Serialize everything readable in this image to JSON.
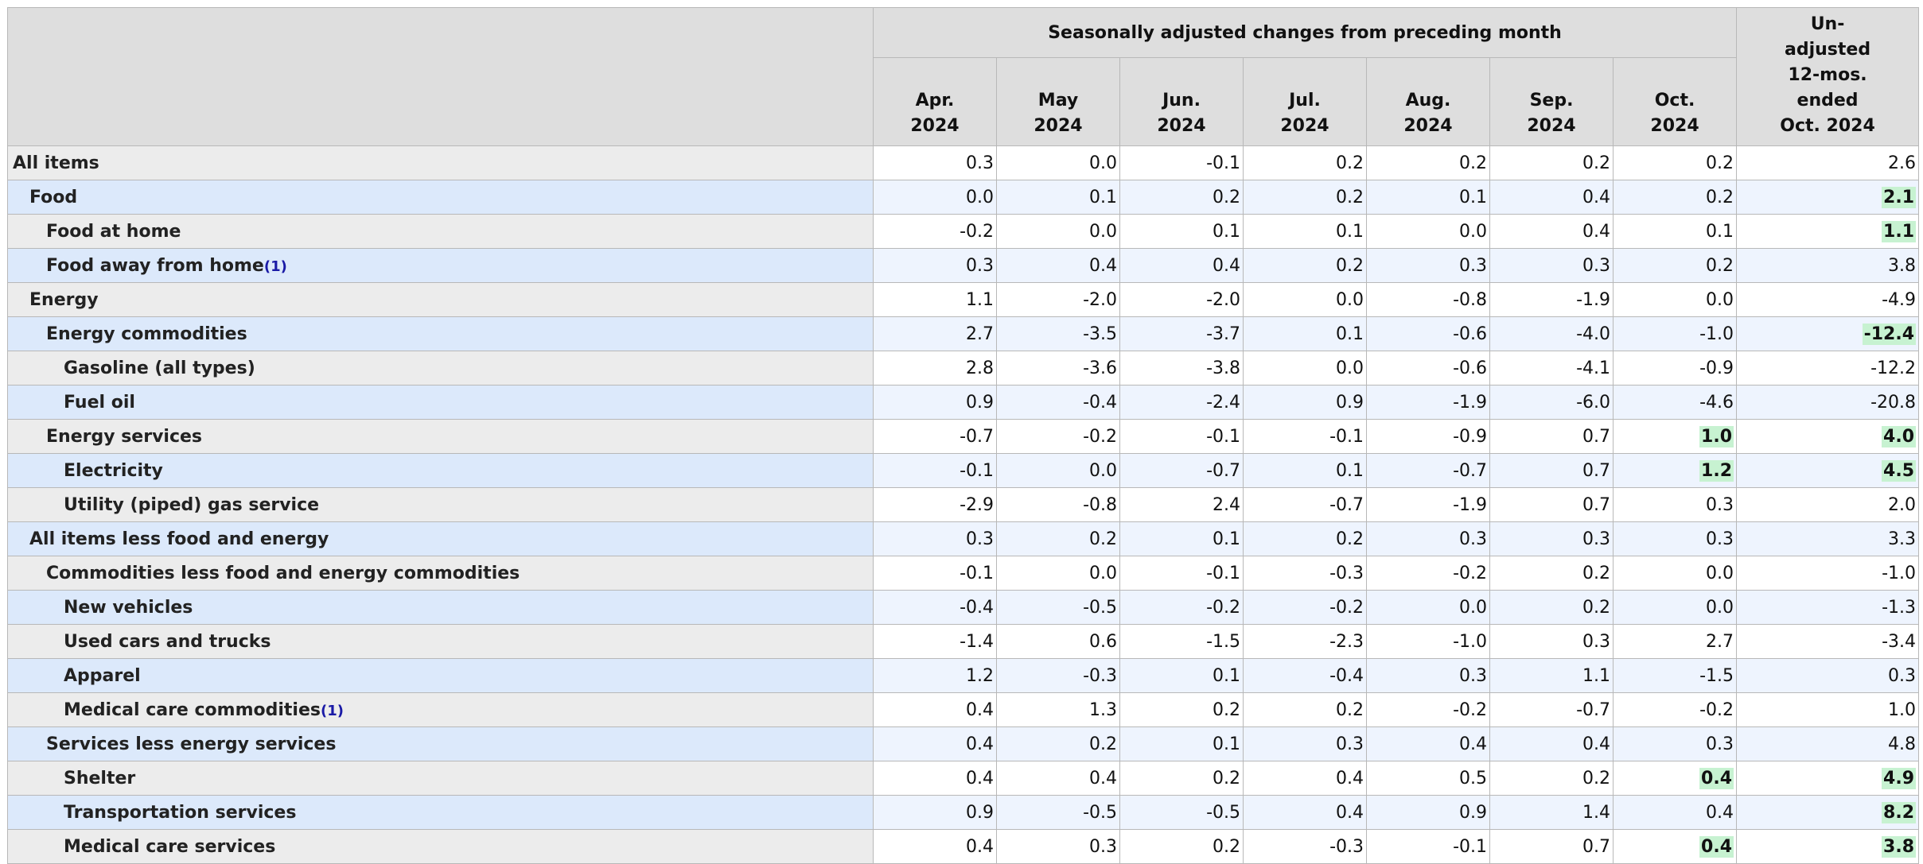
{
  "header": {
    "group_label": "Seasonally adjusted changes from preceding month",
    "months": [
      {
        "line1": "Apr.",
        "line2": "2024"
      },
      {
        "line1": "May",
        "line2": "2024"
      },
      {
        "line1": "Jun.",
        "line2": "2024"
      },
      {
        "line1": "Jul.",
        "line2": "2024"
      },
      {
        "line1": "Aug.",
        "line2": "2024"
      },
      {
        "line1": "Sep.",
        "line2": "2024"
      },
      {
        "line1": "Oct.",
        "line2": "2024"
      }
    ],
    "unadjusted_lines": [
      "Un-",
      "adjusted",
      "12-mos.",
      "ended",
      "Oct. 2024"
    ]
  },
  "rows": [
    {
      "label": "All items",
      "level": 0,
      "values": [
        "0.3",
        "0.0",
        "-0.1",
        "0.2",
        "0.2",
        "0.2",
        "0.2"
      ],
      "annual": "2.6",
      "highlight": []
    },
    {
      "label": "Food",
      "level": 1,
      "values": [
        "0.0",
        "0.1",
        "0.2",
        "0.2",
        "0.1",
        "0.4",
        "0.2"
      ],
      "annual": "2.1",
      "highlight": [
        7
      ]
    },
    {
      "label": "Food at home",
      "level": 2,
      "values": [
        "-0.2",
        "0.0",
        "0.1",
        "0.1",
        "0.0",
        "0.4",
        "0.1"
      ],
      "annual": "1.1",
      "highlight": [
        7
      ]
    },
    {
      "label": "Food away from home",
      "footnote": "1",
      "level": 2,
      "values": [
        "0.3",
        "0.4",
        "0.4",
        "0.2",
        "0.3",
        "0.3",
        "0.2"
      ],
      "annual": "3.8",
      "highlight": []
    },
    {
      "label": "Energy",
      "level": 1,
      "values": [
        "1.1",
        "-2.0",
        "-2.0",
        "0.0",
        "-0.8",
        "-1.9",
        "0.0"
      ],
      "annual": "-4.9",
      "highlight": []
    },
    {
      "label": "Energy commodities",
      "level": 2,
      "values": [
        "2.7",
        "-3.5",
        "-3.7",
        "0.1",
        "-0.6",
        "-4.0",
        "-1.0"
      ],
      "annual": "-12.4",
      "highlight": [
        7
      ]
    },
    {
      "label": "Gasoline (all types)",
      "level": 3,
      "values": [
        "2.8",
        "-3.6",
        "-3.8",
        "0.0",
        "-0.6",
        "-4.1",
        "-0.9"
      ],
      "annual": "-12.2",
      "highlight": []
    },
    {
      "label": "Fuel oil",
      "level": 3,
      "values": [
        "0.9",
        "-0.4",
        "-2.4",
        "0.9",
        "-1.9",
        "-6.0",
        "-4.6"
      ],
      "annual": "-20.8",
      "highlight": []
    },
    {
      "label": "Energy services",
      "level": 2,
      "values": [
        "-0.7",
        "-0.2",
        "-0.1",
        "-0.1",
        "-0.9",
        "0.7",
        "1.0"
      ],
      "annual": "4.0",
      "highlight": [
        6,
        7
      ]
    },
    {
      "label": "Electricity",
      "level": 3,
      "values": [
        "-0.1",
        "0.0",
        "-0.7",
        "0.1",
        "-0.7",
        "0.7",
        "1.2"
      ],
      "annual": "4.5",
      "highlight": [
        6,
        7
      ]
    },
    {
      "label": "Utility (piped) gas service",
      "level": 3,
      "values": [
        "-2.9",
        "-0.8",
        "2.4",
        "-0.7",
        "-1.9",
        "0.7",
        "0.3"
      ],
      "annual": "2.0",
      "highlight": []
    },
    {
      "label": "All items less food and energy",
      "level": 1,
      "values": [
        "0.3",
        "0.2",
        "0.1",
        "0.2",
        "0.3",
        "0.3",
        "0.3"
      ],
      "annual": "3.3",
      "highlight": []
    },
    {
      "label": "Commodities less food and energy commodities",
      "level": 2,
      "values": [
        "-0.1",
        "0.0",
        "-0.1",
        "-0.3",
        "-0.2",
        "0.2",
        "0.0"
      ],
      "annual": "-1.0",
      "highlight": []
    },
    {
      "label": "New vehicles",
      "level": 3,
      "values": [
        "-0.4",
        "-0.5",
        "-0.2",
        "-0.2",
        "0.0",
        "0.2",
        "0.0"
      ],
      "annual": "-1.3",
      "highlight": []
    },
    {
      "label": "Used cars and trucks",
      "level": 3,
      "values": [
        "-1.4",
        "0.6",
        "-1.5",
        "-2.3",
        "-1.0",
        "0.3",
        "2.7"
      ],
      "annual": "-3.4",
      "highlight": []
    },
    {
      "label": "Apparel",
      "level": 3,
      "values": [
        "1.2",
        "-0.3",
        "0.1",
        "-0.4",
        "0.3",
        "1.1",
        "-1.5"
      ],
      "annual": "0.3",
      "highlight": []
    },
    {
      "label": "Medical care commodities",
      "footnote": "1",
      "level": 3,
      "values": [
        "0.4",
        "1.3",
        "0.2",
        "0.2",
        "-0.2",
        "-0.7",
        "-0.2"
      ],
      "annual": "1.0",
      "highlight": []
    },
    {
      "label": "Services less energy services",
      "level": 2,
      "values": [
        "0.4",
        "0.2",
        "0.1",
        "0.3",
        "0.4",
        "0.4",
        "0.3"
      ],
      "annual": "4.8",
      "highlight": []
    },
    {
      "label": "Shelter",
      "level": 3,
      "values": [
        "0.4",
        "0.4",
        "0.2",
        "0.4",
        "0.5",
        "0.2",
        "0.4"
      ],
      "annual": "4.9",
      "highlight": [
        6,
        7
      ]
    },
    {
      "label": "Transportation services",
      "level": 3,
      "values": [
        "0.9",
        "-0.5",
        "-0.5",
        "0.4",
        "0.9",
        "1.4",
        "0.4"
      ],
      "annual": "8.2",
      "highlight": [
        7
      ]
    },
    {
      "label": "Medical care services",
      "level": 3,
      "values": [
        "0.4",
        "0.3",
        "0.2",
        "-0.3",
        "-0.1",
        "0.7",
        "0.4"
      ],
      "annual": "3.8",
      "highlight": [
        6,
        7
      ]
    }
  ]
}
